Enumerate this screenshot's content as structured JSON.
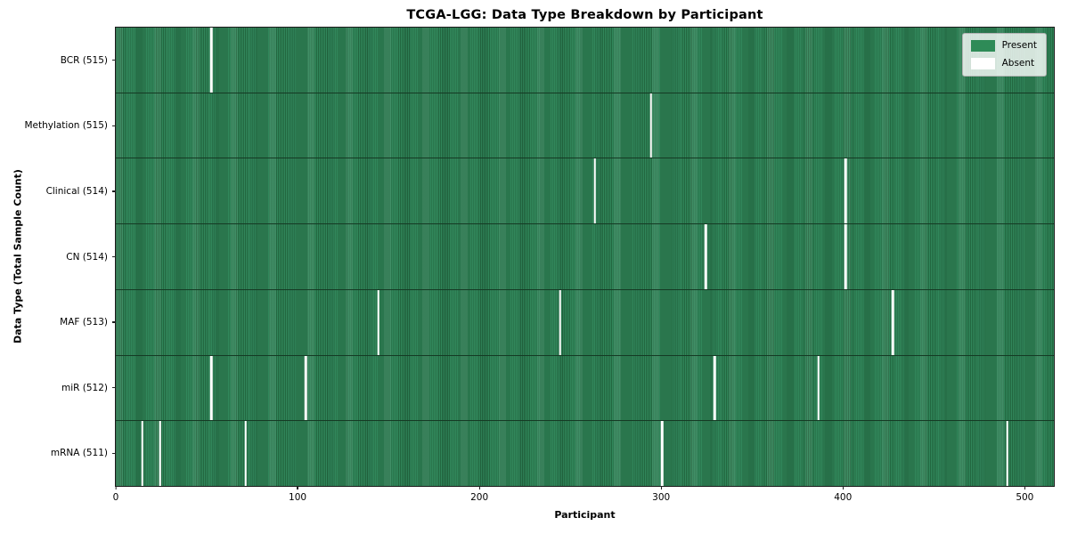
{
  "chart_data": {
    "type": "heatmap",
    "title": "TCGA-LGG: Data Type Breakdown by Participant",
    "xlabel": "Participant",
    "ylabel": "Data Type (Total Sample Count)",
    "x_ticks": [
      0,
      100,
      200,
      300,
      400,
      500
    ],
    "x_max": 516,
    "total_participants": 516,
    "grid": false,
    "legend": {
      "position": "upper-right",
      "present_label": "Present",
      "absent_label": "Absent"
    },
    "colors": {
      "present": "#2e8b57",
      "absent": "#ffffff"
    },
    "rows": [
      {
        "display": "BCR (515)",
        "label": "BCR",
        "count": 515,
        "absent_participants": [
          52
        ]
      },
      {
        "display": "Methylation (515)",
        "label": "Methylation",
        "count": 515,
        "absent_participants": [
          294
        ]
      },
      {
        "display": "Clinical (514)",
        "label": "Clinical",
        "count": 514,
        "absent_participants": [
          263,
          401
        ]
      },
      {
        "display": "CN (514)",
        "label": "CN",
        "count": 514,
        "absent_participants": [
          324,
          401
        ]
      },
      {
        "display": "MAF (513)",
        "label": "MAF",
        "count": 513,
        "absent_participants": [
          144,
          244,
          427
        ]
      },
      {
        "display": "miR (512)",
        "label": "miR",
        "count": 512,
        "absent_participants": [
          52,
          104,
          329,
          386
        ]
      },
      {
        "display": "mRNA (511)",
        "label": "mRNA",
        "count": 511,
        "absent_participants": [
          14,
          24,
          71,
          300,
          490
        ]
      }
    ]
  }
}
